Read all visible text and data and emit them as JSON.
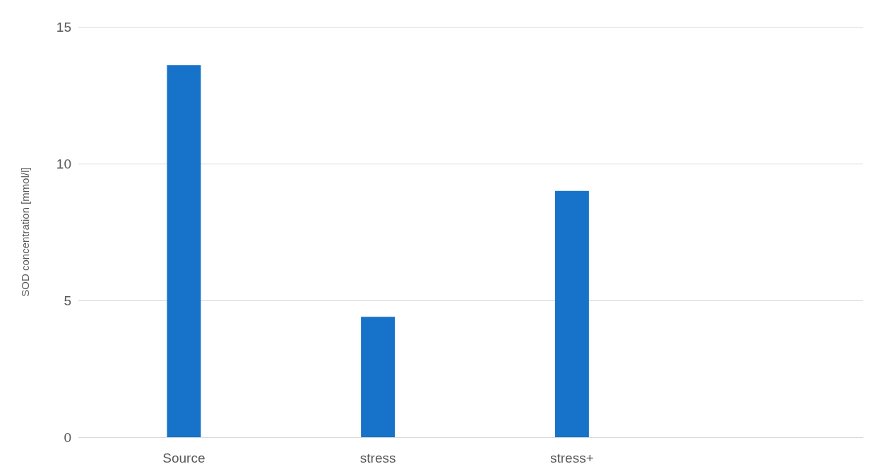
{
  "chart_data": {
    "type": "bar",
    "ylabel": "SOD concentration [mmol/l]",
    "categories": [
      "Source",
      "stress",
      "stress+",
      null
    ],
    "values": [
      13.6,
      4.4,
      9.0,
      null
    ],
    "color": "#1772c9",
    "ylim": [
      0,
      15
    ],
    "yticks": [
      0,
      5,
      10,
      15
    ],
    "grid": "y"
  }
}
